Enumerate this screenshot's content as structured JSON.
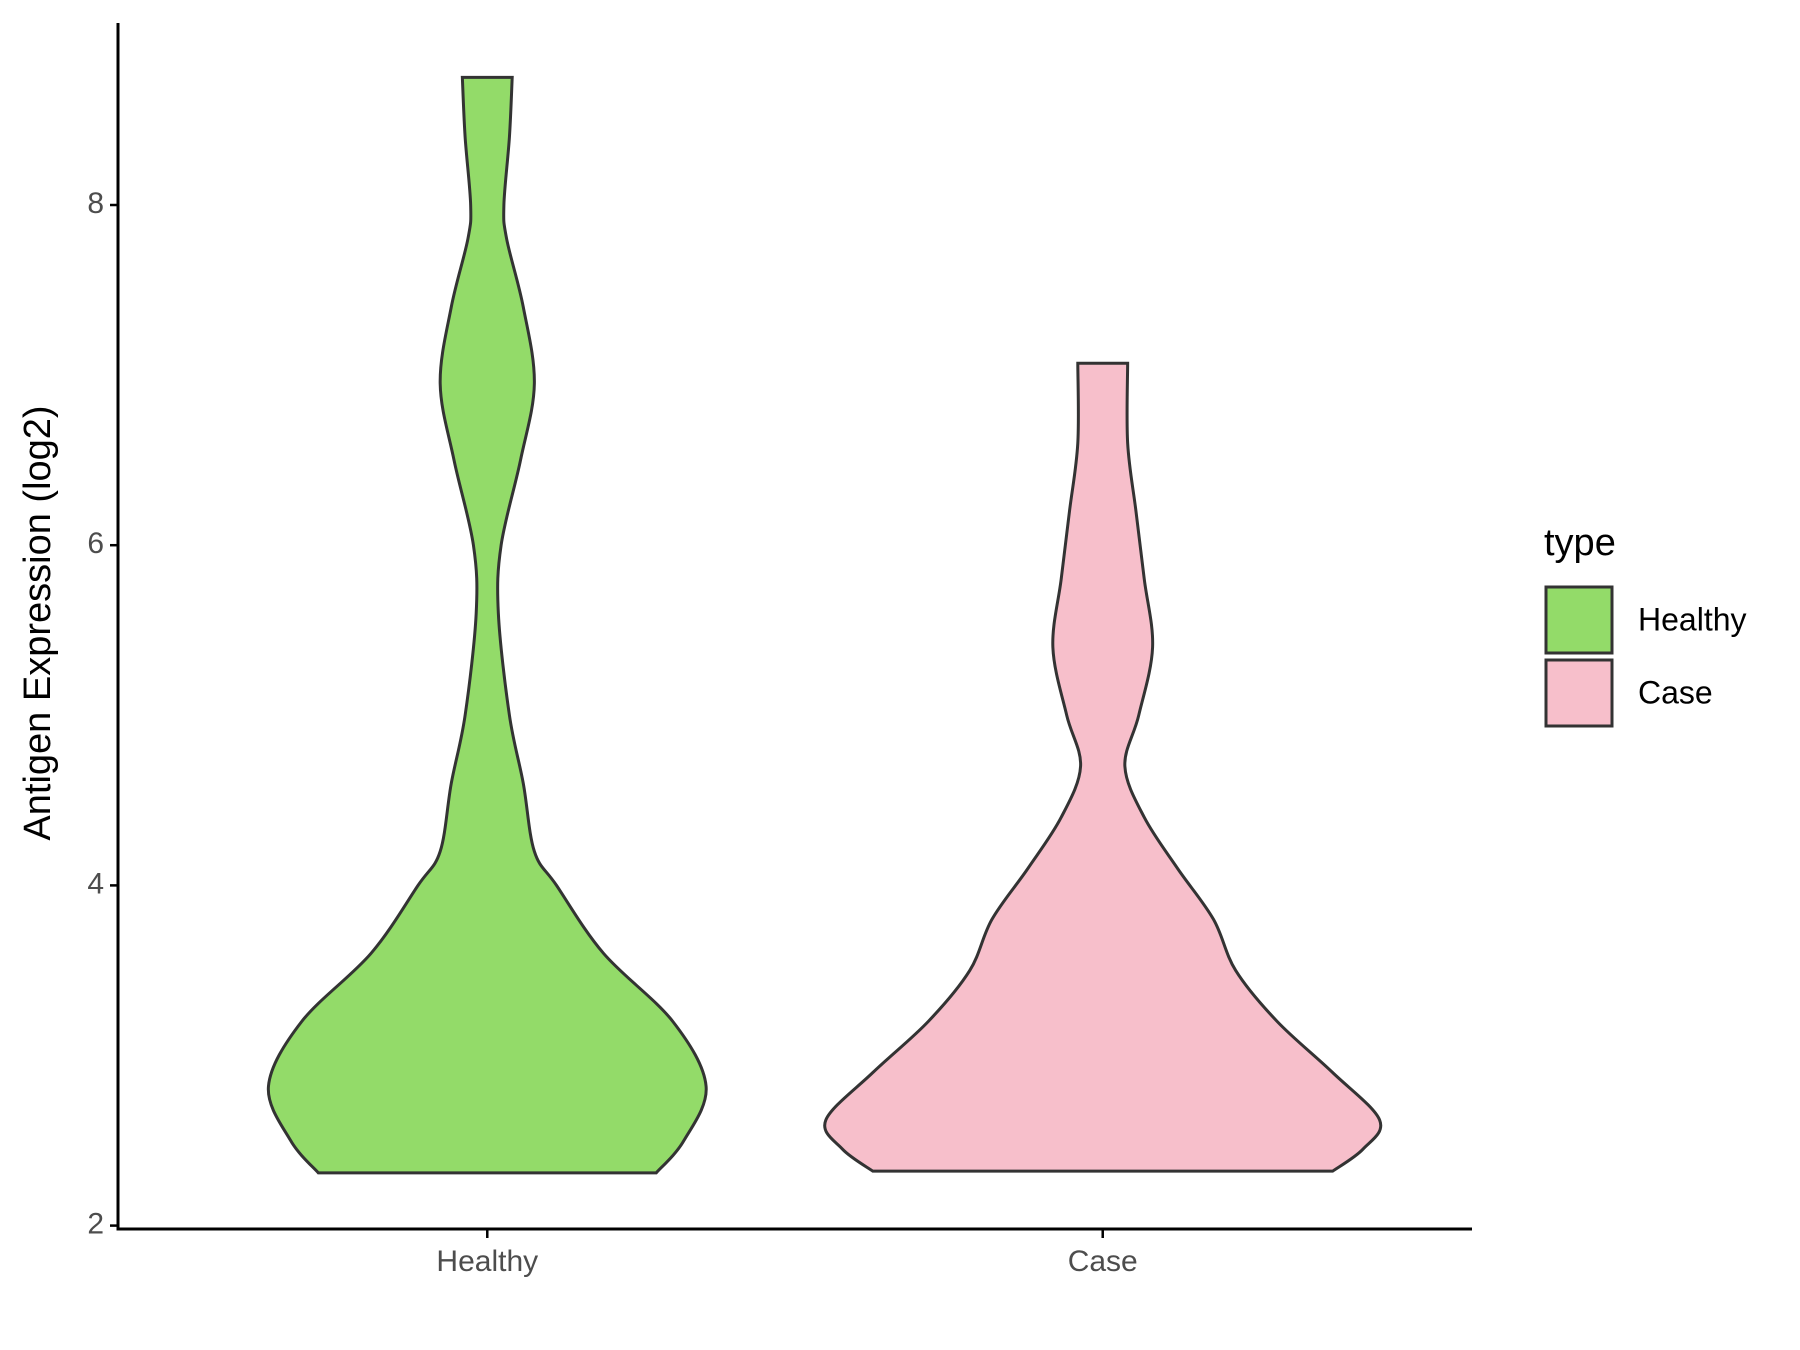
{
  "chart_data": {
    "type": "violin",
    "y_label": "Antigen Expression (log2)",
    "categories": [
      "Healthy",
      "Case"
    ],
    "series": [
      {
        "name": "Healthy",
        "color": "#93db69",
        "y": [
          2.31,
          2.5,
          2.82,
          3.2,
          3.6,
          4.0,
          4.2,
          4.6,
          5.0,
          5.6,
          6.0,
          6.5,
          6.95,
          7.4,
          7.8,
          8.0,
          8.4,
          8.75
        ],
        "density": [
          0.61,
          0.71,
          0.79,
          0.67,
          0.42,
          0.25,
          0.17,
          0.13,
          0.08,
          0.04,
          0.05,
          0.12,
          0.17,
          0.13,
          0.07,
          0.06,
          0.08,
          0.09
        ]
      },
      {
        "name": "Case",
        "color": "#f7bfcb",
        "y": [
          2.32,
          2.45,
          2.62,
          2.9,
          3.2,
          3.5,
          3.8,
          4.1,
          4.4,
          4.7,
          5.0,
          5.4,
          5.8,
          6.2,
          6.6,
          7.07
        ],
        "density": [
          0.83,
          0.94,
          1.0,
          0.83,
          0.63,
          0.48,
          0.4,
          0.27,
          0.15,
          0.08,
          0.13,
          0.18,
          0.15,
          0.12,
          0.09,
          0.09
        ]
      }
    ],
    "ylim": [
      1.98,
      9.07
    ],
    "yticks": [
      2,
      4,
      6,
      8
    ],
    "legend_title": "type",
    "legend": "right"
  }
}
